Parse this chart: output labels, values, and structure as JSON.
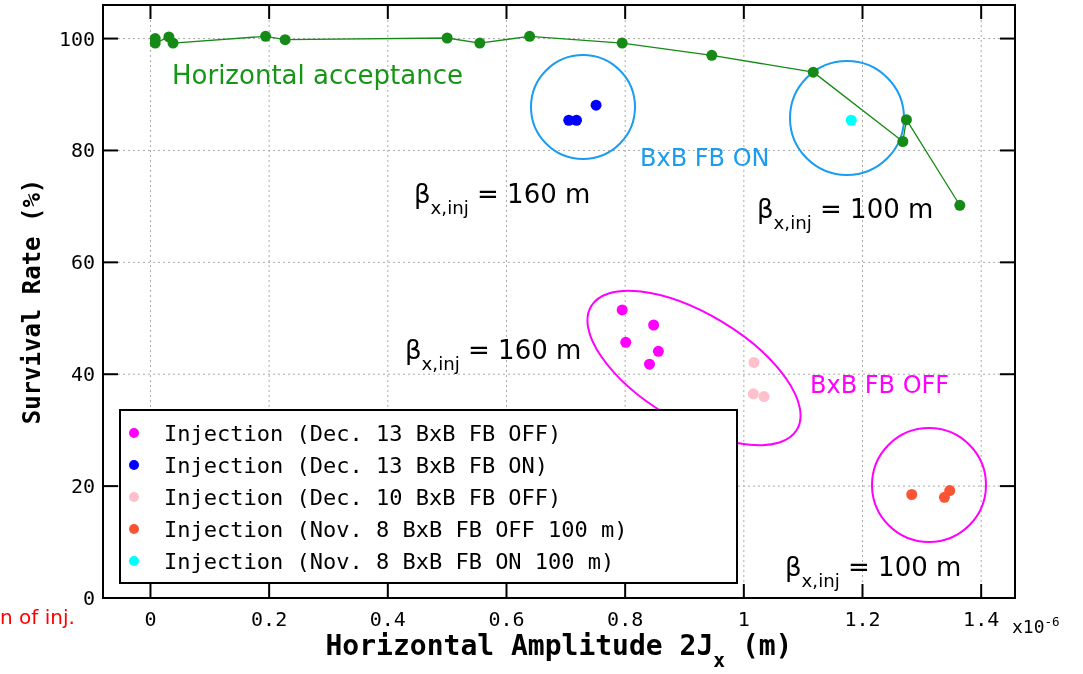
{
  "chart_data": {
    "type": "scatter",
    "xlabel": "Horizontal Amplitude 2J$_{x}$ (m)",
    "ylabel": "Survival Rate (%)",
    "xlim": [
      -0.08,
      1.457
    ],
    "ylim": [
      0,
      106
    ],
    "xticks": [
      0,
      0.2,
      0.4,
      0.6,
      0.8,
      1,
      1.2,
      1.4
    ],
    "yticks": [
      0,
      20,
      40,
      60,
      80,
      100
    ],
    "grid": true,
    "legend": "bottom left",
    "marker": "circle",
    "series": [
      {
        "type": "line",
        "color": "#168a16",
        "x": [
          0.008,
          0.008,
          0.031,
          0.038,
          0.194,
          0.227,
          0.5,
          0.555,
          0.639,
          0.795,
          0.946,
          1.117,
          1.268,
          1.274,
          1.364
        ],
        "values": [
          100,
          99.2,
          100.3,
          99.2,
          100.4,
          99.8,
          100.1,
          99.2,
          100.4,
          99.2,
          97.0,
          94.0,
          81.6,
          85.5,
          70.2
        ]
      },
      {
        "name": "Injection (Dec. 13 BxB FB OFF)",
        "color": "#ff00ff",
        "x": [
          0.795,
          0.848,
          0.801,
          0.856,
          0.841
        ],
        "values": [
          51.5,
          48.8,
          45.7,
          44.1,
          41.8
        ]
      },
      {
        "name": "Injection (Dec. 13 BxB FB ON)",
        "color": "#0000ff",
        "x": [
          0.705,
          0.718,
          0.751
        ],
        "values": [
          85.4,
          85.4,
          88.1
        ]
      },
      {
        "name": "Injection (Dec. 10 BxB FB OFF)",
        "color": "#ffc0cb",
        "x": [
          1.017,
          1.016,
          1.034
        ],
        "values": [
          42.1,
          36.5,
          36.0
        ]
      },
      {
        "name": "Injection (Nov. 8 BxB FB OFF 100 m)",
        "color": "#f95535",
        "x": [
          1.283,
          1.338,
          1.347
        ],
        "values": [
          18.5,
          18.0,
          19.2
        ]
      },
      {
        "name": "Injection (Nov. 8 BxB FB ON 100 m)",
        "color": "#00ffff",
        "x": [
          1.181
        ],
        "values": [
          85.4
        ]
      }
    ],
    "annotations": [
      "Horizontal acceptance",
      "BxB FB ON",
      "β$_{x,inj}$ = 160 m",
      "β$_{x,inj}$ = 100 m",
      "β$_{x,inj}$ = 160 m",
      "BxB FB OFF",
      "β$_{x,inj}$ = 100 m",
      "x10$^{-6}$",
      "n of inj."
    ]
  }
}
